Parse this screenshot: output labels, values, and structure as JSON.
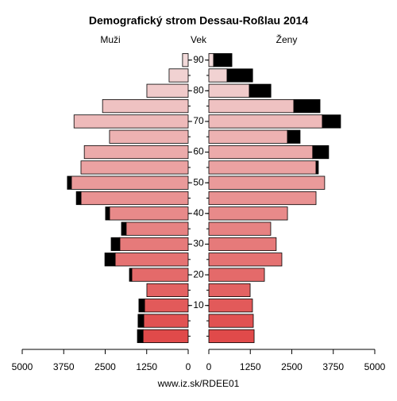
{
  "chart_data": {
    "type": "pyramid",
    "title": "Demografický strom Dessau-Roßlau 2014",
    "left_label": "Muži",
    "center_label": "Vek",
    "right_label": "Ženy",
    "footer": "www.iz.sk/RDEE01",
    "categories": [
      null,
      null,
      "10",
      null,
      "20",
      null,
      "30",
      null,
      "40",
      null,
      "50",
      null,
      "60",
      null,
      "70",
      null,
      "80",
      null,
      "90"
    ],
    "colors": [
      "#e04a4a",
      "#e15252",
      "#e25a5a",
      "#e36262",
      "#e46a6a",
      "#e57272",
      "#e67a7a",
      "#e78282",
      "#e88a8a",
      "#e99292",
      "#ea9a9a",
      "#eba2a2",
      "#ecaaaa",
      "#edb2b2",
      "#eebaba",
      "#efc2c2",
      "#f0caca",
      "#f1d2d2",
      "#f2dada"
    ],
    "series": [
      {
        "side": "left",
        "values": [
          1360,
          1340,
          1315,
          1245,
          1700,
          2200,
          2060,
          1870,
          2370,
          3230,
          3520,
          3230,
          3130,
          2370,
          3440,
          2580,
          1245,
          575,
          170
        ]
      },
      {
        "side": "left",
        "color": "#000000",
        "values": [
          170,
          170,
          170,
          0,
          70,
          310,
          260,
          140,
          120,
          140,
          120,
          0,
          0,
          0,
          0,
          0,
          0,
          0,
          0
        ]
      },
      {
        "side": "right",
        "values": [
          1365,
          1340,
          1315,
          1245,
          1675,
          2200,
          2030,
          1865,
          2370,
          3230,
          3490,
          3230,
          3130,
          2370,
          3420,
          2560,
          1220,
          550,
          145
        ]
      },
      {
        "side": "right",
        "color": "#000000",
        "values": [
          0,
          0,
          0,
          0,
          0,
          0,
          0,
          0,
          0,
          0,
          0,
          70,
          480,
          380,
          550,
          790,
          650,
          770,
          550
        ]
      }
    ],
    "xlim": [
      0,
      5000
    ],
    "left_xticks": [
      5000,
      3750,
      2500,
      1250,
      0
    ],
    "right_xticks": [
      0,
      1250,
      2500,
      3750,
      5000
    ]
  }
}
